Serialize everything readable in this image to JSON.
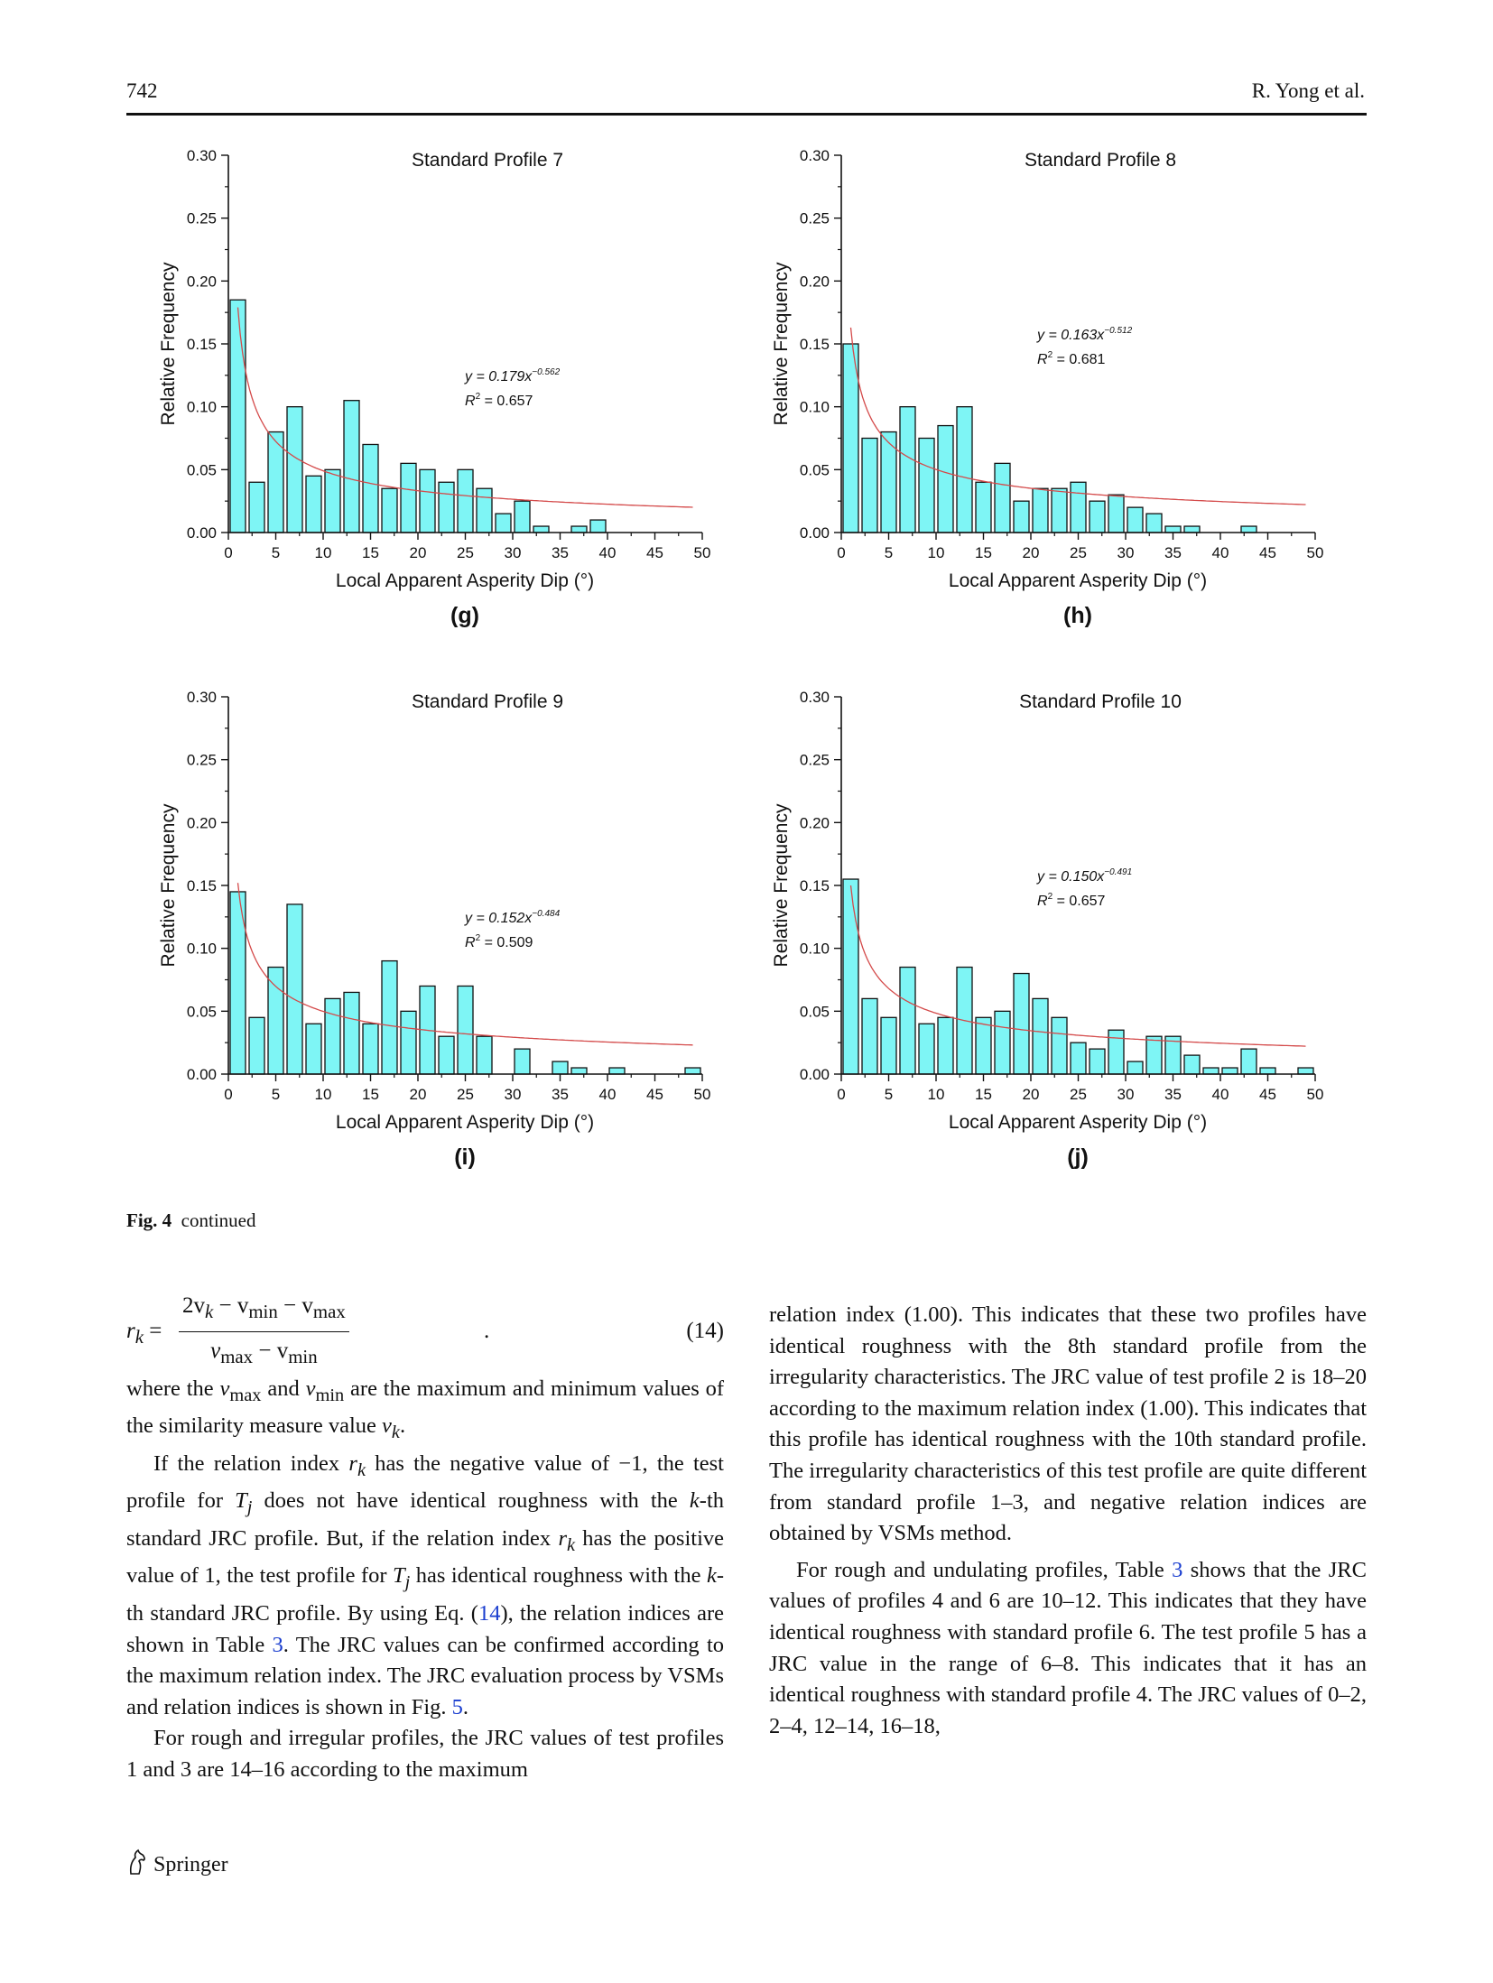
{
  "header": {
    "page_number": "742",
    "authors": "R. Yong et al."
  },
  "chart_data": [
    {
      "type": "bar",
      "panel_label": "(g)",
      "title": "Standard Profile 7",
      "xlabel": "Local Apparent Asperity Dip (°)",
      "ylabel": "Relative Frequency",
      "xlim": [
        0,
        50
      ],
      "ylim": [
        0,
        0.3
      ],
      "xticks": [
        "0",
        "5",
        "10",
        "15",
        "20",
        "25",
        "30",
        "35",
        "40",
        "45",
        "50"
      ],
      "yticks": [
        "0.00",
        "0.05",
        "0.10",
        "0.15",
        "0.20",
        "0.25",
        "0.30"
      ],
      "bin_width": 2,
      "x": [
        1,
        3,
        5,
        7,
        9,
        11,
        13,
        15,
        17,
        19,
        21,
        23,
        25,
        27,
        29,
        31,
        33,
        35,
        37,
        39,
        41,
        43,
        45,
        47,
        49
      ],
      "values": [
        0.185,
        0.04,
        0.08,
        0.1,
        0.045,
        0.05,
        0.105,
        0.07,
        0.035,
        0.055,
        0.05,
        0.04,
        0.05,
        0.035,
        0.015,
        0.025,
        0.005,
        0,
        0.005,
        0.01,
        0,
        0,
        0,
        0,
        0
      ],
      "fit": {
        "a": 0.179,
        "b": -0.562
      },
      "equation": {
        "y": "y = 0.179x",
        "exp": "−0.562",
        "r2_label": "R",
        "r2_value": " = 0.657"
      },
      "colors": {
        "bar": "#7ef5f5",
        "fit": "#d44a4a"
      }
    },
    {
      "type": "bar",
      "panel_label": "(h)",
      "title": "Standard Profile 8",
      "xlabel": "Local Apparent Asperity Dip (°)",
      "ylabel": "Relative Frequency",
      "xlim": [
        0,
        50
      ],
      "ylim": [
        0,
        0.3
      ],
      "xticks": [
        "0",
        "5",
        "10",
        "15",
        "20",
        "25",
        "30",
        "35",
        "40",
        "45",
        "50"
      ],
      "yticks": [
        "0.00",
        "0.05",
        "0.10",
        "0.15",
        "0.20",
        "0.25",
        "0.30"
      ],
      "bin_width": 2,
      "x": [
        1,
        3,
        5,
        7,
        9,
        11,
        13,
        15,
        17,
        19,
        21,
        23,
        25,
        27,
        29,
        31,
        33,
        35,
        37,
        39,
        41,
        43,
        45,
        47,
        49
      ],
      "values": [
        0.15,
        0.075,
        0.08,
        0.1,
        0.075,
        0.085,
        0.1,
        0.04,
        0.055,
        0.025,
        0.035,
        0.035,
        0.04,
        0.025,
        0.03,
        0.02,
        0.015,
        0.005,
        0.005,
        0,
        0,
        0.005,
        0,
        0,
        0
      ],
      "fit": {
        "a": 0.163,
        "b": -0.512
      },
      "equation": {
        "y": "y = 0.163x",
        "exp": "−0.512",
        "r2_label": "R",
        "r2_value": " = 0.681"
      },
      "colors": {
        "bar": "#7ef5f5",
        "fit": "#d44a4a"
      }
    },
    {
      "type": "bar",
      "panel_label": "(i)",
      "title": "Standard Profile 9",
      "xlabel": "Local Apparent Asperity Dip (°)",
      "ylabel": "Relative Frequency",
      "xlim": [
        0,
        50
      ],
      "ylim": [
        0,
        0.3
      ],
      "xticks": [
        "0",
        "5",
        "10",
        "15",
        "20",
        "25",
        "30",
        "35",
        "40",
        "45",
        "50"
      ],
      "yticks": [
        "0.00",
        "0.05",
        "0.10",
        "0.15",
        "0.20",
        "0.25",
        "0.30"
      ],
      "bin_width": 2,
      "x": [
        1,
        3,
        5,
        7,
        9,
        11,
        13,
        15,
        17,
        19,
        21,
        23,
        25,
        27,
        29,
        31,
        33,
        35,
        37,
        39,
        41,
        43,
        45,
        47,
        49
      ],
      "values": [
        0.145,
        0.045,
        0.085,
        0.135,
        0.04,
        0.06,
        0.065,
        0.04,
        0.09,
        0.05,
        0.07,
        0.03,
        0.07,
        0.03,
        0,
        0.02,
        0,
        0.01,
        0.005,
        0,
        0.005,
        0,
        0,
        0,
        0.005
      ],
      "fit": {
        "a": 0.152,
        "b": -0.484
      },
      "equation": {
        "y": "y = 0.152x",
        "exp": "−0.484",
        "r2_label": "R",
        "r2_value": " = 0.509"
      },
      "colors": {
        "bar": "#7ef5f5",
        "fit": "#d44a4a"
      }
    },
    {
      "type": "bar",
      "panel_label": "(j)",
      "title": "Standard Profile 10",
      "xlabel": "Local Apparent Asperity Dip (°)",
      "ylabel": "Relative Frequency",
      "xlim": [
        0,
        50
      ],
      "ylim": [
        0,
        0.3
      ],
      "xticks": [
        "0",
        "5",
        "10",
        "15",
        "20",
        "25",
        "30",
        "35",
        "40",
        "45",
        "50"
      ],
      "yticks": [
        "0.00",
        "0.05",
        "0.10",
        "0.15",
        "0.20",
        "0.25",
        "0.30"
      ],
      "bin_width": 2,
      "x": [
        1,
        3,
        5,
        7,
        9,
        11,
        13,
        15,
        17,
        19,
        21,
        23,
        25,
        27,
        29,
        31,
        33,
        35,
        37,
        39,
        41,
        43,
        45,
        47,
        49
      ],
      "values": [
        0.155,
        0.06,
        0.045,
        0.085,
        0.04,
        0.045,
        0.085,
        0.045,
        0.05,
        0.08,
        0.06,
        0.045,
        0.025,
        0.02,
        0.035,
        0.01,
        0.03,
        0.03,
        0.015,
        0.005,
        0.005,
        0.02,
        0.005,
        0,
        0.005
      ],
      "fit": {
        "a": 0.15,
        "b": -0.491
      },
      "equation": {
        "y": "y = 0.150x",
        "exp": "−0.491",
        "r2_label": "R",
        "r2_value": " = 0.657"
      },
      "colors": {
        "bar": "#7ef5f5",
        "fit": "#d44a4a"
      }
    }
  ],
  "figure_caption": {
    "label": "Fig. 4",
    "text": "continued"
  },
  "equation_14": {
    "lhs": "r",
    "lhs_sub": "k",
    "equals": " =",
    "num": "2v",
    "num_sub": "k",
    "minus1": " − v",
    "min_sub": "min",
    "minus2": " − v",
    "max_sub": "max",
    "den_v1": "v",
    "den_sub1": "max",
    "den_minus": " − v",
    "den_sub2": "min",
    "period": ".",
    "number": "(14)"
  },
  "left_column": {
    "p1": {
      "s1": "where the ",
      "v1": "v",
      "v1sub": "max",
      "s2": " and ",
      "v2": "v",
      "v2sub": "min",
      "s3": " are the maximum and minimum values of the similarity measure value ",
      "v3": "v",
      "v3sub": "k",
      "s4": "."
    },
    "p2": {
      "s1": "If the relation index ",
      "r": "r",
      "rsub": "k",
      "s2": " has the negative value of −1, the test profile for ",
      "t": "T",
      "tsub": "j",
      "s3": " does not have identical roughness with the ",
      "k": "k",
      "s4": "-th standard JRC profile. But, if the relation index ",
      "r2": "r",
      "r2sub": "k",
      "s5": " has the positive value of 1, the test profile for ",
      "t2": "T",
      "t2sub": "j",
      "s6": " has identical roughness with the ",
      "k2": "k",
      "s7": "-th standard JRC profile. By using Eq. (",
      "eqref": "14",
      "s8": "), the relation indices are shown in Table ",
      "tabref": "3",
      "s9": ". The JRC values can be confirmed according to the maximum relation index. The JRC evaluation process by VSMs and relation indices is shown in Fig. ",
      "figref": "5",
      "s10": "."
    },
    "p3": "For rough and irregular profiles, the JRC values of test profiles 1 and 3 are 14–16 according to the maximum"
  },
  "right_column": {
    "p1": "relation index (1.00). This indicates that these two profiles have identical roughness with the 8th standard profile from the irregularity characteristics. The JRC value of test profile 2 is 18–20 according to the maximum relation index (1.00). This indicates that this profile has identical roughness with the 10th standard profile. The irregularity characteristics of this test profile are quite different from standard profile 1–3, and negative relation indices are obtained by VSMs method.",
    "p2": {
      "s1": "For rough and undulating profiles, Table ",
      "tabref": "3",
      "s2": " shows that the JRC values of profiles 4 and 6 are 10–12. This indicates that they have identical roughness with standard profile 6. The test profile 5 has a JRC value in the range of 6–8. This indicates that it has an identical roughness with standard profile 4. The JRC values of 0–2, 2–4, 12–14, 16–18,"
    }
  },
  "footer": {
    "publisher": "Springer",
    "logo_icon": "springer-horse-icon"
  }
}
